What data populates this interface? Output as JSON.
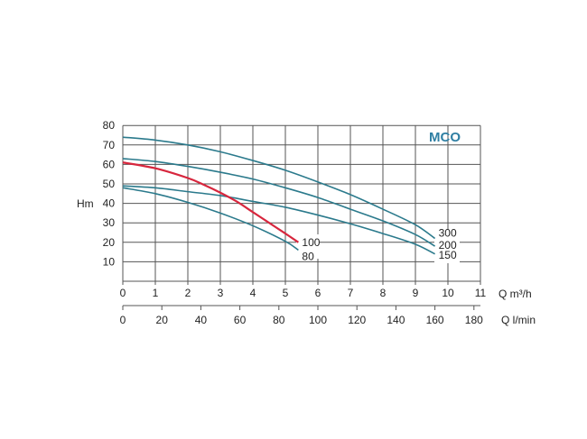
{
  "chart_data": {
    "type": "line",
    "title": "MCO",
    "ylabel": "Hm",
    "xlabel": "Q m³/h",
    "xlabel2": "Q l/min",
    "xlim": [
      0,
      11
    ],
    "ylim": [
      0,
      80
    ],
    "x2lim": [
      0,
      183.33
    ],
    "xticks": [
      0,
      1,
      2,
      3,
      4,
      5,
      6,
      7,
      8,
      9,
      10,
      11
    ],
    "yticks": [
      10,
      20,
      30,
      40,
      50,
      60,
      70,
      80
    ],
    "x2ticks": [
      0,
      20,
      40,
      60,
      80,
      100,
      120,
      140,
      160,
      180
    ],
    "grid": true,
    "colors": {
      "teal": "#2b7a8c",
      "red": "#d7263d",
      "title": "#2f7fa3",
      "grid": "#555555"
    },
    "series": [
      {
        "name": "300",
        "color": "#2b7a8c",
        "x": [
          0,
          1,
          2,
          3,
          4,
          5,
          6,
          7,
          8,
          9,
          9.6
        ],
        "y": [
          74,
          72.5,
          70,
          66.5,
          62,
          57,
          51,
          44.5,
          37,
          29,
          22
        ]
      },
      {
        "name": "200",
        "color": "#2b7a8c",
        "x": [
          0,
          1,
          2,
          3,
          4,
          5,
          6,
          7,
          8,
          9,
          9.6
        ],
        "y": [
          63,
          61.5,
          59,
          56,
          52.5,
          48,
          43,
          37,
          31,
          24,
          18
        ]
      },
      {
        "name": "150",
        "color": "#2b7a8c",
        "x": [
          0,
          1,
          2,
          3,
          4,
          5,
          6,
          7,
          8,
          9,
          9.6
        ],
        "y": [
          49,
          48,
          46,
          44,
          41,
          38,
          34,
          29.5,
          24.5,
          19,
          14
        ]
      },
      {
        "name": "100",
        "color": "#d7263d",
        "x": [
          0,
          1,
          2,
          2.5,
          3,
          3.5,
          4,
          4.5,
          5,
          5.4
        ],
        "y": [
          61,
          58,
          53,
          49.5,
          45.5,
          41,
          35.5,
          30,
          24.5,
          20
        ]
      },
      {
        "name": "80",
        "color": "#2b7a8c",
        "x": [
          0,
          1,
          2,
          3,
          4,
          5,
          5.4
        ],
        "y": [
          48,
          45,
          40.5,
          35,
          28.5,
          20.5,
          16
        ]
      }
    ]
  }
}
